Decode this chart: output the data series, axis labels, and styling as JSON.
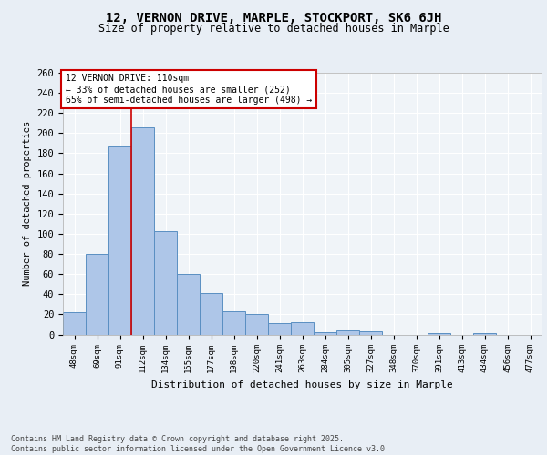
{
  "title1": "12, VERNON DRIVE, MARPLE, STOCKPORT, SK6 6JH",
  "title2": "Size of property relative to detached houses in Marple",
  "xlabel": "Distribution of detached houses by size in Marple",
  "ylabel": "Number of detached properties",
  "categories": [
    "48sqm",
    "69sqm",
    "91sqm",
    "112sqm",
    "134sqm",
    "155sqm",
    "177sqm",
    "198sqm",
    "220sqm",
    "241sqm",
    "263sqm",
    "284sqm",
    "305sqm",
    "327sqm",
    "348sqm",
    "370sqm",
    "391sqm",
    "413sqm",
    "434sqm",
    "456sqm",
    "477sqm"
  ],
  "values": [
    22,
    80,
    188,
    206,
    103,
    60,
    41,
    23,
    20,
    11,
    12,
    2,
    4,
    3,
    0,
    0,
    1,
    0,
    1,
    0,
    0
  ],
  "bar_color": "#aec6e8",
  "bar_edge_color": "#5a8fc2",
  "vline_color": "#cc0000",
  "vline_x": 2.5,
  "annotation_text": "12 VERNON DRIVE: 110sqm\n← 33% of detached houses are smaller (252)\n65% of semi-detached houses are larger (498) →",
  "annotation_box_color": "#ffffff",
  "annotation_box_edge_color": "#cc0000",
  "ylim": [
    0,
    260
  ],
  "yticks": [
    0,
    20,
    40,
    60,
    80,
    100,
    120,
    140,
    160,
    180,
    200,
    220,
    240,
    260
  ],
  "footnote": "Contains HM Land Registry data © Crown copyright and database right 2025.\nContains public sector information licensed under the Open Government Licence v3.0.",
  "bg_color": "#e8eef5",
  "plot_bg_color": "#f0f4f8"
}
